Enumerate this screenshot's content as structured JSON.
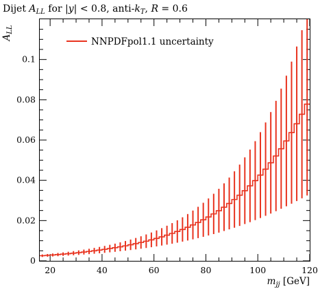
{
  "chart_data": {
    "type": "line",
    "title": "Dijet A_LL for |y| < 0.8, anti-k_T, R = 0.6",
    "title_parts": {
      "prefix": "Dijet ",
      "a": "A",
      "a_sub": "LL",
      "mid": " for |",
      "y": "y",
      "mid2": "| < 0.8, anti-",
      "k": "k",
      "k_sub": "T",
      "mid3": ", ",
      "r": "R",
      "suffix": " = 0.6"
    },
    "xlabel_parts": {
      "m": "m",
      "m_sub": "jj",
      "unit": " [GeV]"
    },
    "ylabel_parts": {
      "a": "A",
      "a_sub": "LL"
    },
    "xlim": [
      16,
      120
    ],
    "ylim": [
      0,
      0.12
    ],
    "xticks": [
      {
        "value": 20,
        "label": "20"
      },
      {
        "value": 40,
        "label": "40"
      },
      {
        "value": 60,
        "label": "60"
      },
      {
        "value": 80,
        "label": "80"
      },
      {
        "value": 100,
        "label": "100"
      },
      {
        "value": 120,
        "label": "120"
      }
    ],
    "yticks": [
      {
        "value": 0,
        "label": "0"
      },
      {
        "value": 0.02,
        "label": "0.02"
      },
      {
        "value": 0.04,
        "label": "0.04"
      },
      {
        "value": 0.06,
        "label": "0.06"
      },
      {
        "value": 0.08,
        "label": "0.08"
      },
      {
        "value": 0.1,
        "label": "0.1"
      }
    ],
    "legend": {
      "label": "NNPDFpol1.1 uncertainty",
      "placement": "top-left"
    },
    "series": [
      {
        "name": "NNPDFpol1.1 uncertainty",
        "color": "#e8321e",
        "style": "step-with-error-bars",
        "bin_width": 2,
        "bin_start": 16,
        "bin_end": 120,
        "central_model": {
          "a": 0.00247,
          "b": 0.0335
        },
        "error_model": {
          "a": 0.0006,
          "b": 0.042
        }
      }
    ]
  }
}
